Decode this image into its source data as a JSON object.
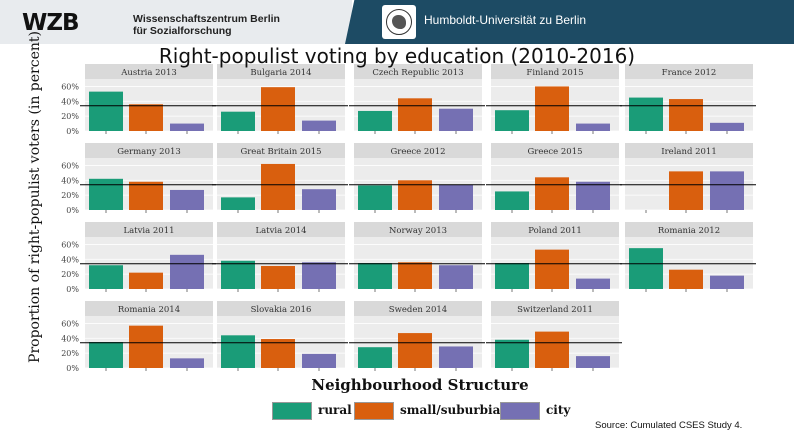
{
  "header": {
    "org_logo": "WZB",
    "org_line1": "Wissenschaftszentrum Berlin",
    "org_line2": "für Sozialforschung",
    "uni_name": "Humboldt-Universität zu Berlin"
  },
  "title": "Right-populist voting by education (2010-2016)",
  "source": "Source: Cumulated CSES Study 4.",
  "colors": {
    "rural": "#1a9c78",
    "small": "#d95f0e",
    "city": "#7570b3"
  },
  "chart_data": {
    "type": "bar",
    "ylabel": "Proportion of right-populist voters (in percent)",
    "xlabel": "Neighbourhood Structure",
    "ylim": [
      0,
      70
    ],
    "yticks": [
      "0%",
      "20%",
      "40%",
      "60%"
    ],
    "grid": true,
    "legend_position": "bottom",
    "categories": [
      "rural",
      "small/suburbian",
      "city"
    ],
    "panels": [
      {
        "label": "Austria 2013",
        "values": [
          53,
          36,
          10
        ],
        "ref": 34
      },
      {
        "label": "Bulgaria 2014",
        "values": [
          26,
          59,
          14
        ],
        "ref": 34
      },
      {
        "label": "Czech Republic 2013",
        "values": [
          27,
          44,
          30
        ],
        "ref": 34
      },
      {
        "label": "Finland 2015",
        "values": [
          28,
          60,
          10
        ],
        "ref": 34
      },
      {
        "label": "France 2012",
        "values": [
          45,
          43,
          11
        ],
        "ref": 34
      },
      {
        "label": "Germany 2013",
        "values": [
          42,
          38,
          27
        ],
        "ref": 34
      },
      {
        "label": "Great Britain 2015",
        "values": [
          17,
          62,
          28
        ],
        "ref": 34
      },
      {
        "label": "Greece 2012",
        "values": [
          33,
          40,
          34
        ],
        "ref": 34
      },
      {
        "label": "Greece 2015",
        "values": [
          25,
          44,
          38
        ],
        "ref": 34
      },
      {
        "label": "Ireland 2011",
        "values": [
          null,
          52,
          52
        ],
        "ref": 34
      },
      {
        "label": "Latvia 2011",
        "values": [
          32,
          22,
          46
        ],
        "ref": 34
      },
      {
        "label": "Latvia 2014",
        "values": [
          38,
          31,
          36
        ],
        "ref": 34
      },
      {
        "label": "Norway 2013",
        "values": [
          35,
          36,
          32
        ],
        "ref": 34
      },
      {
        "label": "Poland 2011",
        "values": [
          35,
          53,
          14
        ],
        "ref": 34
      },
      {
        "label": "Romania 2012",
        "values": [
          55,
          26,
          18
        ],
        "ref": 34
      },
      {
        "label": "Romania 2014",
        "values": [
          35,
          57,
          13
        ],
        "ref": 34
      },
      {
        "label": "Slovakia 2016",
        "values": [
          44,
          39,
          19
        ],
        "ref": 34
      },
      {
        "label": "Sweden 2014",
        "values": [
          28,
          47,
          29
        ],
        "ref": 34
      },
      {
        "label": "Switzerland 2011",
        "values": [
          38,
          49,
          16
        ],
        "ref": 34
      }
    ]
  },
  "legend": [
    {
      "key": "rural",
      "label": "rural"
    },
    {
      "key": "small",
      "label": "small/suburbian"
    },
    {
      "key": "city",
      "label": "city"
    }
  ]
}
